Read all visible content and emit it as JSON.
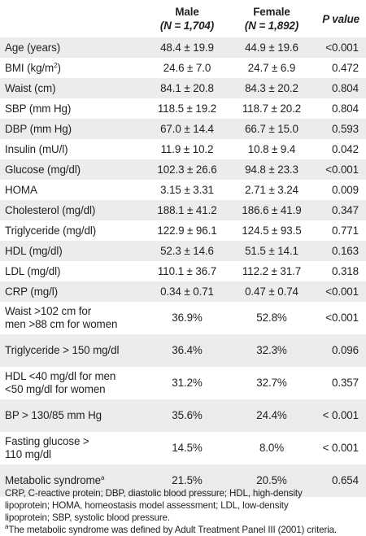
{
  "header": {
    "col1": "",
    "male_title": "Male",
    "male_n": "(N = 1,704)",
    "female_title": "Female",
    "female_n": "(N = 1,892)",
    "pvalue": "P value"
  },
  "rows": [
    {
      "label": "Age (years)",
      "male": "48.4 ± 19.9",
      "female": "44.9 ± 19.6",
      "p": "<0.001"
    },
    {
      "label_pre": "BMI (kg/m",
      "label_sup": "2",
      "label_post": ")",
      "male": "24.6 ± 7.0",
      "female": "24.7 ± 6.9",
      "p": "0.472"
    },
    {
      "label": "Waist (cm)",
      "male": "84.1 ± 20.8",
      "female": "84.3 ± 20.2",
      "p": "0.804"
    },
    {
      "label": "SBP (mm Hg)",
      "male": "118.5 ± 19.2",
      "female": "118.7 ± 20.2",
      "p": "0.804"
    },
    {
      "label": "DBP (mm Hg)",
      "male": "67.0 ± 14.4",
      "female": "66.7 ± 15.0",
      "p": "0.593"
    },
    {
      "label": "Insulin (mU/l)",
      "male": "11.9 ± 10.2",
      "female": "10.8 ± 9.4",
      "p": "0.042"
    },
    {
      "label": "Glucose (mg/dl)",
      "male": "102.3 ± 26.6",
      "female": "94.8 ± 23.3",
      "p": "<0.001"
    },
    {
      "label": "HOMA",
      "male": "3.15 ± 3.31",
      "female": "2.71 ± 3.24",
      "p": "0.009"
    },
    {
      "label": "Cholesterol (mg/dl)",
      "male": "188.1 ± 41.2",
      "female": "186.6 ± 41.9",
      "p": "0.347"
    },
    {
      "label": "Triglyceride (mg/dl)",
      "male": "122.9 ± 96.1",
      "female": "124.5 ± 93.5",
      "p": "0.771"
    },
    {
      "label": "HDL (mg/dl)",
      "male": "52.3 ± 14.6",
      "female": "51.5 ± 14.1",
      "p": "0.163"
    },
    {
      "label": "LDL (mg/dl)",
      "male": "110.1 ± 36.7",
      "female": "112.2 ± 31.7",
      "p": "0.318"
    },
    {
      "label": "CRP (mg/l)",
      "male": "0.34 ± 0.71",
      "female": "0.47 ± 0.74",
      "p": "<0.001"
    },
    {
      "label_l1": "Waist >102 cm for",
      "label_l2": "men >88 cm for women",
      "male": "36.9%",
      "female": "52.8%",
      "p": "<0.001"
    },
    {
      "label": "Triglyceride > 150 mg/dl",
      "male": "36.4%",
      "female": "32.3%",
      "p": "0.096"
    },
    {
      "label_l1": "HDL <40 mg/dl for men",
      "label_l2": "<50 mg/dl for women",
      "male": "31.2%",
      "female": "32.7%",
      "p": "0.357"
    },
    {
      "label": "BP > 130/85 mm Hg",
      "male": "35.6%",
      "female": "24.4%",
      "p": "< 0.001"
    },
    {
      "label_l1": "Fasting glucose >",
      "label_l2": "110 mg/dl",
      "male": "14.5%",
      "female": "8.0%",
      "p": "< 0.001"
    },
    {
      "label_pre": "Metabolic syndrome",
      "label_sup": "a",
      "label_post": "",
      "male": "21.5%",
      "female": "20.5%",
      "p": "0.654"
    }
  ],
  "footnote": {
    "abbrev_l1": "CRP, C-reactive protein; DBP, diastolic blood pressure; HDL, high-density",
    "abbrev_l2": "lipoprotein; HOMA, homeostasis model assessment; LDL, low-density",
    "abbrev_l3": "lipoprotein; SBP, systolic blood pressure.",
    "note_sup": "a",
    "note_text": "The metabolic syndrome was defined by Adult Treatment Panel III (2001) criteria."
  }
}
